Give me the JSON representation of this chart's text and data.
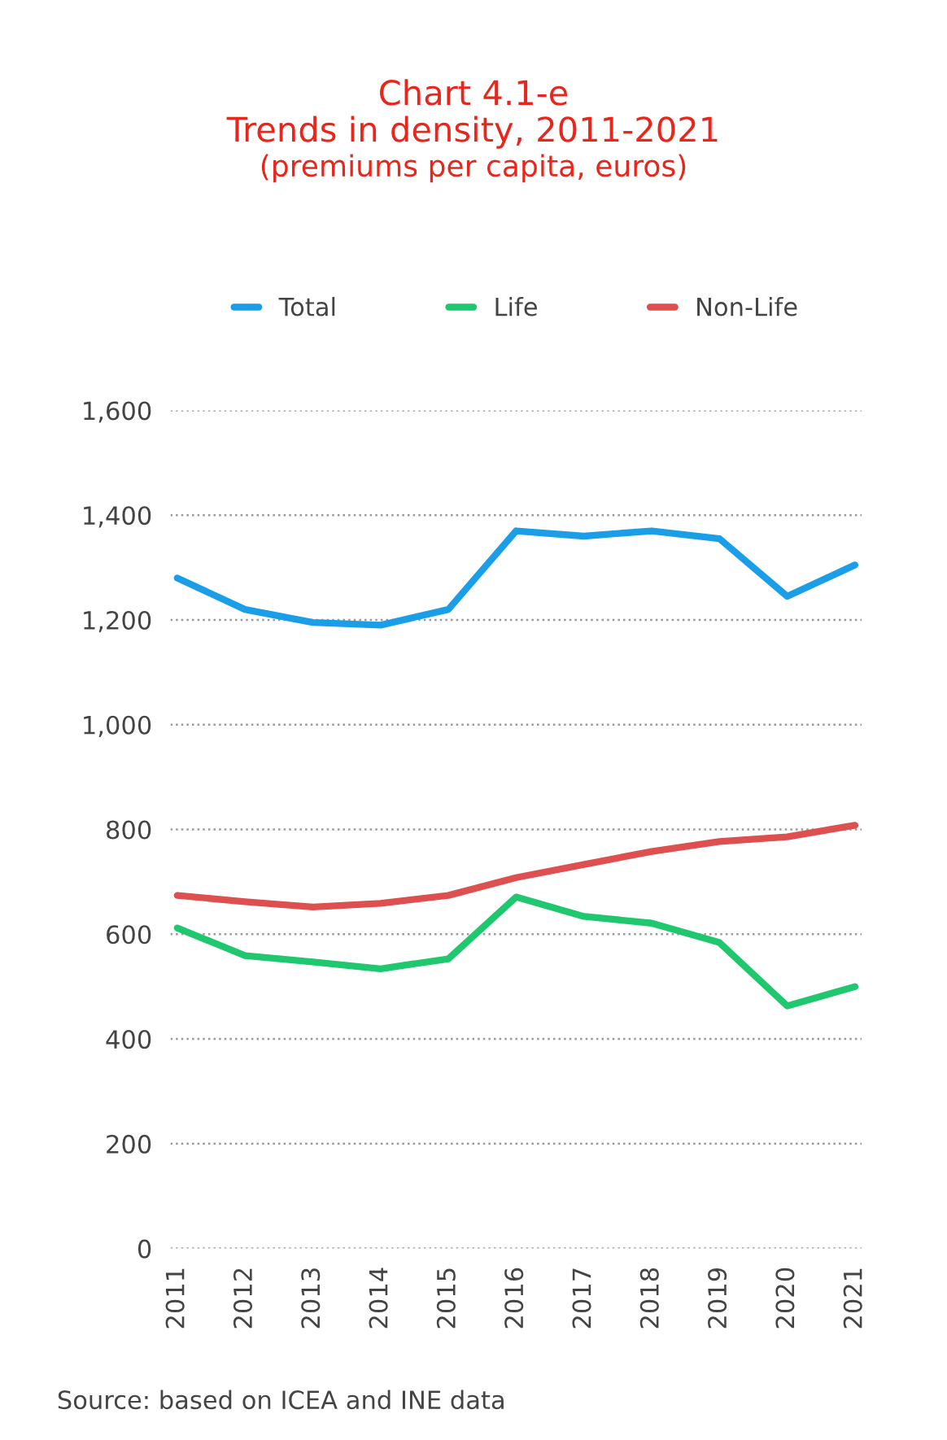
{
  "chart_data": {
    "type": "line",
    "title": "Chart 4.1-e\nTrends in density, 2011-2021",
    "subtitle": "(premiums per capita, euros)",
    "categories": [
      "2011",
      "2012",
      "2013",
      "2014",
      "2015",
      "2016",
      "2017",
      "2018",
      "2019",
      "2020",
      "2021"
    ],
    "series": [
      {
        "name": "Total",
        "color": "#1a9ee8",
        "values": [
          1280,
          1220,
          1195,
          1190,
          1220,
          1370,
          1360,
          1370,
          1355,
          1245,
          1305
        ]
      },
      {
        "name": "Life",
        "color": "#1fc86e",
        "values": [
          612,
          559,
          547,
          534,
          553,
          671,
          634,
          621,
          584,
          463,
          500
        ]
      },
      {
        "name": "Non-Life",
        "color": "#de5050",
        "values": [
          674,
          662,
          652,
          659,
          674,
          708,
          733,
          758,
          777,
          786,
          808
        ]
      }
    ],
    "ylim": [
      0,
      1600
    ],
    "yticks": [
      {
        "value": 0,
        "label": "0"
      },
      {
        "value": 200,
        "label": "200"
      },
      {
        "value": 400,
        "label": "400"
      },
      {
        "value": 600,
        "label": "600"
      },
      {
        "value": 800,
        "label": "800"
      },
      {
        "value": 1000,
        "label": "1,000"
      },
      {
        "value": 1200,
        "label": "1,200"
      },
      {
        "value": 1400,
        "label": "1,400"
      },
      {
        "value": 1600,
        "label": "1,600"
      }
    ],
    "grid": "y",
    "legend": "top",
    "marker": "none",
    "line_style": "solid",
    "annotations": [
      "Source: based on ICEA and INE data"
    ]
  }
}
